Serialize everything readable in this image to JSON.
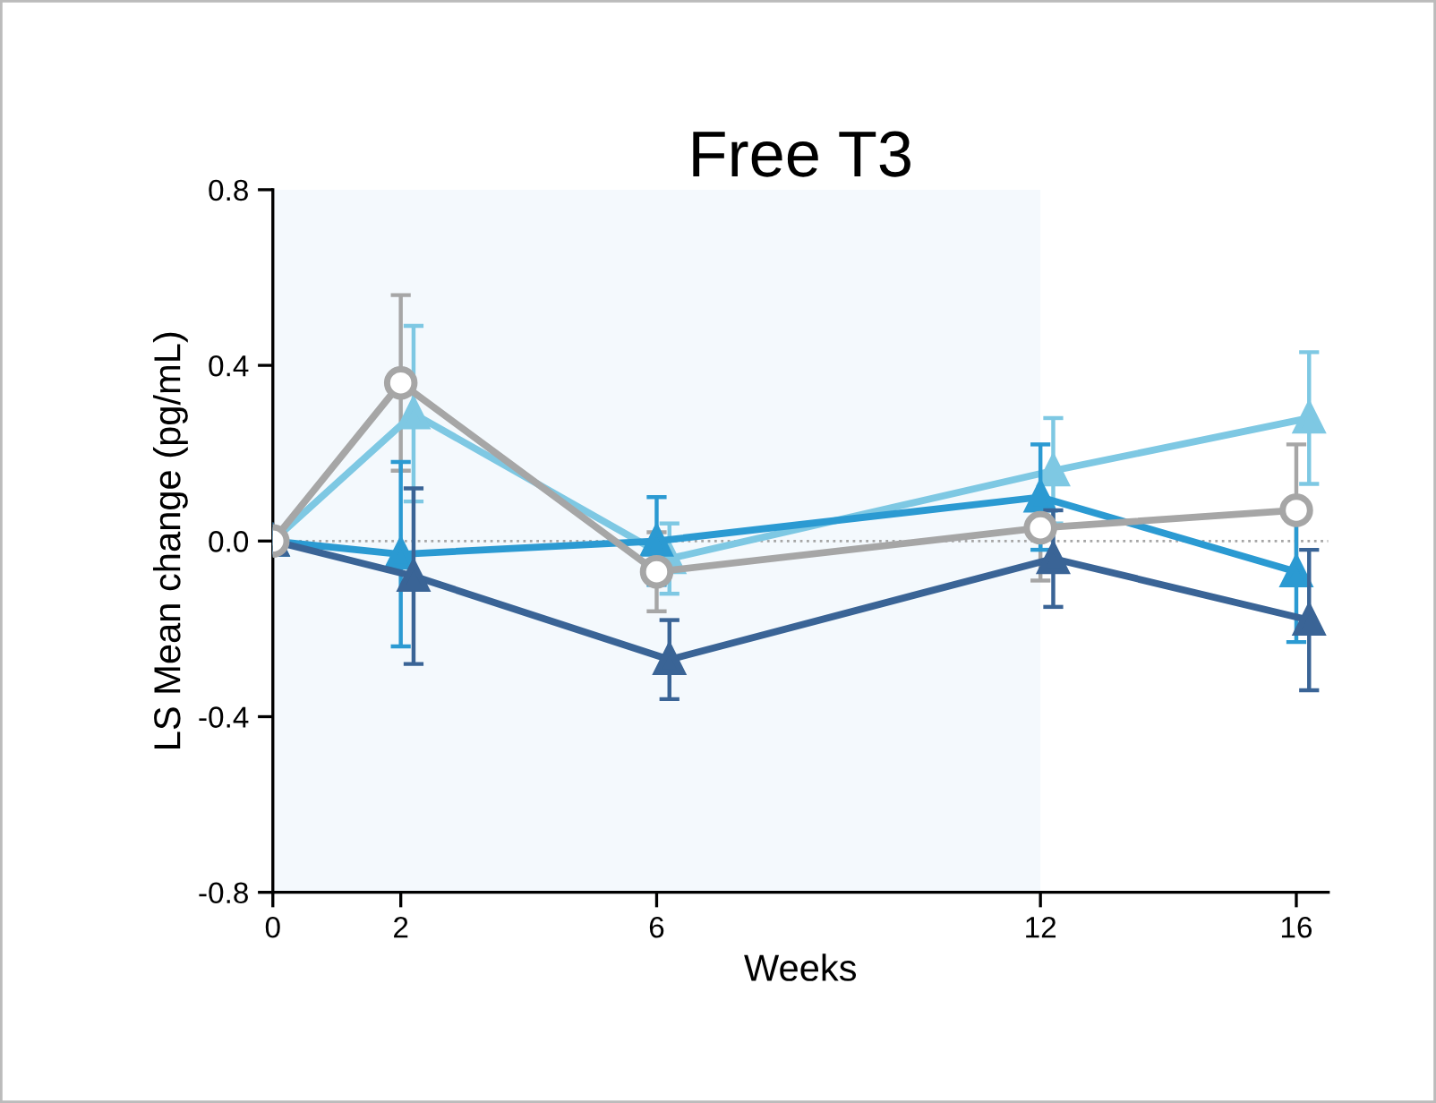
{
  "chart_data": {
    "type": "line",
    "title": "Free T3",
    "xlabel": "Weeks",
    "ylabel": "LS Mean change (pg/mL)",
    "xlim": [
      0,
      16.5
    ],
    "xticks": [
      0,
      2,
      6,
      12,
      16
    ],
    "ylim": [
      -0.8,
      0.8
    ],
    "yticks": [
      {
        "value": -0.8,
        "label": "-0.8"
      },
      {
        "value": -0.4,
        "label": "-0.4"
      },
      {
        "value": 0,
        "label": "0.0"
      },
      {
        "value": 0.4,
        "label": "0.4"
      },
      {
        "value": 0.8,
        "label": "0.8"
      }
    ],
    "grid": false,
    "line_style": "solid",
    "bands": [
      {
        "axis": "x",
        "from": 0,
        "to": 12,
        "color": "#f4f9fd"
      }
    ],
    "ref_lines": [
      {
        "axis": "y",
        "value": 0,
        "color": "#a6a6a6",
        "line_style": "dotted"
      }
    ],
    "series": [
      {
        "color": "#a6a6a6",
        "marker": "circle",
        "x": [
          0,
          2,
          6,
          12,
          16
        ],
        "values": [
          0,
          0.36,
          -0.07,
          0.03,
          0.07
        ],
        "errors": [
          null,
          0.2,
          0.09,
          0.12,
          0.15
        ]
      },
      {
        "color": "#7ec8e3",
        "marker": "triangle",
        "x": [
          0,
          2.2,
          6.2,
          12.2,
          16.2
        ],
        "values": [
          0,
          0.29,
          -0.04,
          0.16,
          0.28
        ],
        "errors": [
          null,
          0.2,
          0.08,
          0.12,
          0.15
        ]
      },
      {
        "color": "#2b9ad2",
        "marker": "triangle",
        "x": [
          0,
          2,
          6,
          12,
          16
        ],
        "values": [
          0,
          -0.03,
          0,
          0.1,
          -0.07
        ],
        "errors": [
          null,
          0.21,
          0.1,
          0.12,
          0.16
        ]
      },
      {
        "color": "#3a6496",
        "marker": "triangle",
        "x": [
          0,
          2.2,
          6.2,
          12.2,
          16.2
        ],
        "values": [
          0,
          -0.08,
          -0.27,
          -0.04,
          -0.18
        ],
        "errors": [
          null,
          0.2,
          0.09,
          0.11,
          0.16
        ]
      }
    ]
  }
}
